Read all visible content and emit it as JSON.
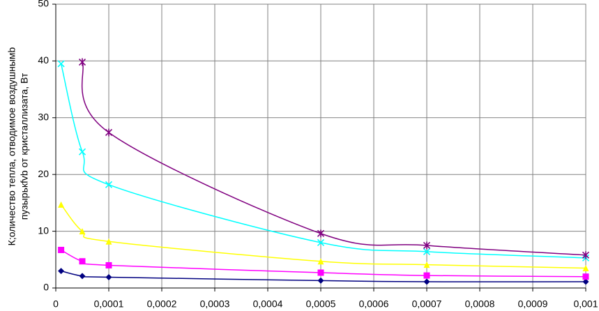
{
  "chart_data": {
    "type": "line",
    "y_label": [
      "К;оличество тепла, отводимое воздушнымb",
      "пузырькfvb от кристаллизата, Вт"
    ],
    "x": [
      1e-05,
      5e-05,
      0.0001,
      0.0005,
      0.0007,
      0.001
    ],
    "series": [
      {
        "color": "#000080",
        "marker": "diamond",
        "values": [
          3.0,
          2.1,
          1.9,
          1.3,
          1.1,
          1.1
        ]
      },
      {
        "color": "#ff00ff",
        "marker": "square",
        "values": [
          6.7,
          4.7,
          4.0,
          2.7,
          2.2,
          2.0
        ]
      },
      {
        "color": "#ffff00",
        "marker": "triangle",
        "values": [
          14.7,
          10.0,
          8.2,
          4.7,
          4.1,
          3.5
        ]
      },
      {
        "color": "#00ffff",
        "marker": "x",
        "values": [
          39.5,
          24.0,
          18.2,
          8.0,
          6.4,
          5.3
        ]
      },
      {
        "color": "#800080",
        "marker": "star",
        "values": [
          null,
          39.8,
          27.4,
          9.6,
          7.5,
          5.8
        ]
      }
    ],
    "xlim": [
      0,
      0.001
    ],
    "xticks": [
      0,
      {
        "value": 0.0001,
        "label": "0,0001"
      },
      {
        "value": 0.0002,
        "label": "0,0002"
      },
      {
        "value": 0.0003,
        "label": "0,0003"
      },
      {
        "value": 0.0004,
        "label": "0,0004"
      },
      {
        "value": 0.0005,
        "label": "0,0005"
      },
      {
        "value": 0.0006,
        "label": "0,0006"
      },
      {
        "value": 0.0007,
        "label": "0,0007"
      },
      {
        "value": 0.0008,
        "label": "0,0008"
      },
      {
        "value": 0.0009,
        "label": "0,0009"
      },
      {
        "value": 0.001,
        "label": "0,001"
      }
    ],
    "ylim": [
      0,
      50
    ],
    "yticks": [
      0,
      10,
      20,
      30,
      40,
      50
    ],
    "grid": true
  }
}
